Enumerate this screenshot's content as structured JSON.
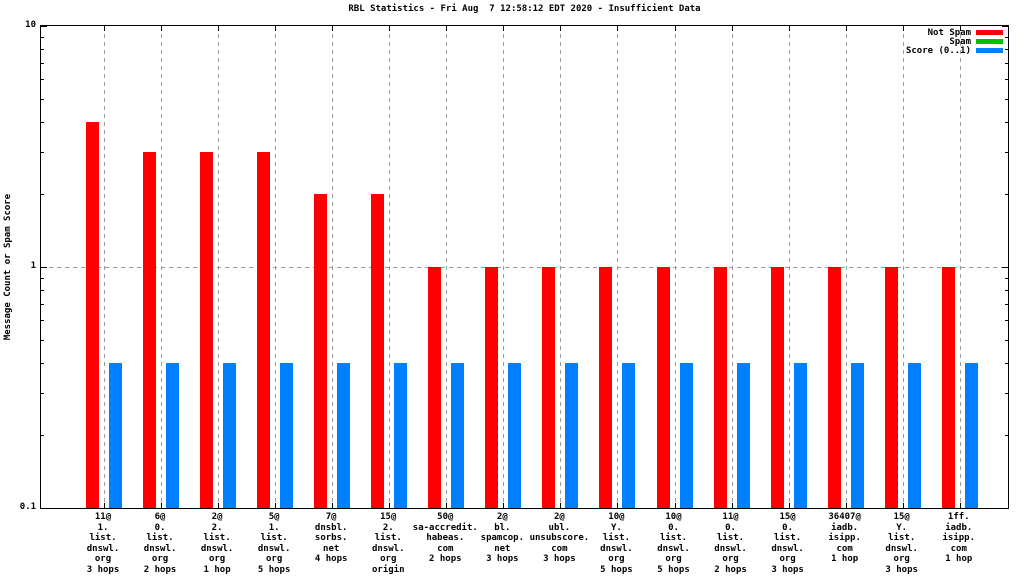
{
  "title": "RBL Statistics - Fri Aug  7 12:58:12 EDT 2020 - Insufficient Data",
  "ylabel": "Message Count or Spam Score",
  "chart_data": {
    "type": "bar",
    "title": "RBL Statistics - Fri Aug  7 12:58:12 EDT 2020 - Insufficient Data",
    "ylabel": "Message Count or Spam Score",
    "y_scale": "log",
    "ylim": [
      0.1,
      10
    ],
    "yticks": [
      {
        "label": "0.1",
        "value": 0.1
      },
      {
        "label": "1",
        "value": 1
      },
      {
        "label": "10",
        "value": 10
      }
    ],
    "grid": true,
    "legend_position": "top-right-inside",
    "categories": [
      [
        "11@",
        "1.",
        "list.",
        "dnswl.",
        "org",
        "3 hops"
      ],
      [
        "6@",
        "0.",
        "list.",
        "dnswl.",
        "org",
        "2 hops"
      ],
      [
        "2@",
        "2.",
        "list.",
        "dnswl.",
        "org",
        "1 hop"
      ],
      [
        "5@",
        "1.",
        "list.",
        "dnswl.",
        "org",
        "5 hops"
      ],
      [
        "7@",
        "dnsbl.",
        "sorbs.",
        "net",
        "4 hops"
      ],
      [
        "15@",
        "2.",
        "list.",
        "dnswl.",
        "org",
        "origin"
      ],
      [
        "50@",
        "sa-accredit.",
        "habeas.",
        "com",
        "2 hops"
      ],
      [
        "2@",
        "bl.",
        "spamcop.",
        "net",
        "3 hops"
      ],
      [
        "2@",
        "ubl.",
        "unsubscore.",
        "com",
        "3 hops"
      ],
      [
        "10@",
        "Y.",
        "list.",
        "dnswl.",
        "org",
        "5 hops"
      ],
      [
        "10@",
        "0.",
        "list.",
        "dnswl.",
        "org",
        "5 hops"
      ],
      [
        "11@",
        "0.",
        "list.",
        "dnswl.",
        "org",
        "2 hops"
      ],
      [
        "15@",
        "0.",
        "list.",
        "dnswl.",
        "org",
        "3 hops"
      ],
      [
        "36407@",
        "iadb.",
        "isipp.",
        "com",
        "1 hop"
      ],
      [
        "15@",
        "Y.",
        "list.",
        "dnswl.",
        "org",
        "3 hops"
      ],
      [
        "1ff.",
        "iadb.",
        "isipp.",
        "com",
        "1 hop"
      ]
    ],
    "series": [
      {
        "name": "Not Spam",
        "color": "#ff0000",
        "values": [
          4,
          3,
          3,
          3,
          2,
          2,
          1,
          1,
          1,
          1,
          1,
          1,
          1,
          1,
          1,
          1
        ]
      },
      {
        "name": "Spam",
        "color": "#00c000",
        "values": [
          0,
          0,
          0,
          0,
          0,
          0,
          0,
          0,
          0,
          0,
          0,
          0,
          0,
          0,
          0,
          0
        ]
      },
      {
        "name": "Score (0..1)",
        "color": "#0080ff",
        "values": [
          0.4,
          0.4,
          0.4,
          0.4,
          0.4,
          0.4,
          0.4,
          0.4,
          0.4,
          0.4,
          0.4,
          0.4,
          0.4,
          0.4,
          0.4,
          0.4
        ]
      }
    ],
    "colors": {
      "grid": "#9a9a9a",
      "axis": "#000000",
      "background": "#ffffff"
    }
  }
}
